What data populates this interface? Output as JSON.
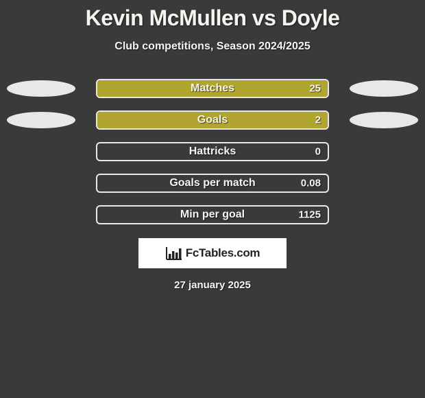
{
  "header": {
    "title": "Kevin McMullen vs Doyle",
    "subtitle": "Club competitions, Season 2024/2025"
  },
  "chart": {
    "type": "bar",
    "fill_color": "#b0a52e",
    "border_color": "#e8e8e8",
    "ellipse_color": "#e8e8e8",
    "rows": [
      {
        "label": "Matches",
        "value": "25",
        "fill_pct": 100,
        "show_left_ellipse": true,
        "show_right_ellipse": true
      },
      {
        "label": "Goals",
        "value": "2",
        "fill_pct": 100,
        "show_left_ellipse": true,
        "show_right_ellipse": true
      },
      {
        "label": "Hattricks",
        "value": "0",
        "fill_pct": 0,
        "show_left_ellipse": false,
        "show_right_ellipse": false
      },
      {
        "label": "Goals per match",
        "value": "0.08",
        "fill_pct": 0,
        "show_left_ellipse": false,
        "show_right_ellipse": false
      },
      {
        "label": "Min per goal",
        "value": "1125",
        "fill_pct": 0,
        "show_left_ellipse": false,
        "show_right_ellipse": false
      }
    ]
  },
  "footer": {
    "logo_text": "FcTables.com",
    "logo_icon": "bar-chart-icon",
    "date": "27 january 2025"
  },
  "colors": {
    "background": "#3a3a3a",
    "text": "#f5f5f0"
  }
}
